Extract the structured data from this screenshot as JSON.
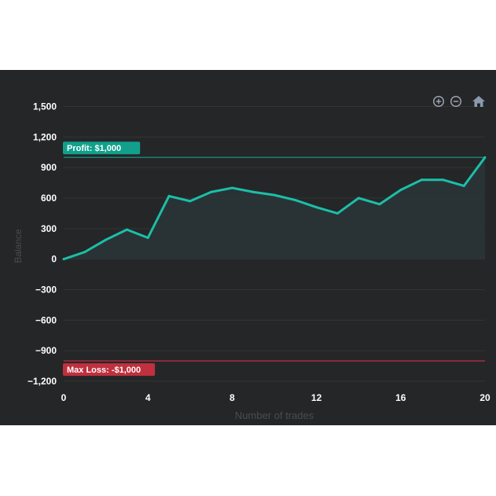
{
  "toolbar": {
    "zoom_in_icon": "zoom-in-icon",
    "zoom_out_icon": "zoom-out-icon",
    "home_icon": "home-icon"
  },
  "colors": {
    "background": "#252628",
    "line": "#1bbfa8",
    "area": "#2a3536",
    "grid": "#323436",
    "axis_text": "#ffffff",
    "axis_title": "#4a4c4f",
    "profit": "#12a08c",
    "loss": "#c0303e"
  },
  "annotations": {
    "profit_label": "Profit: $1,000",
    "loss_label": "Max Loss: -$1,000"
  },
  "chart_data": {
    "type": "area",
    "xlabel": "Number of trades",
    "ylabel": "Balance",
    "xlim": [
      0,
      20
    ],
    "ylim": [
      -1300,
      1550
    ],
    "x_ticks": [
      0,
      4,
      8,
      12,
      16,
      20
    ],
    "x_tick_labels": [
      "0",
      "4",
      "8",
      "12",
      "16",
      "20"
    ],
    "y_ticks": [
      1500,
      1200,
      900,
      600,
      300,
      0,
      -300,
      -600,
      -900,
      -1200
    ],
    "y_tick_labels": [
      "1,500",
      "1,200",
      "900",
      "600",
      "300",
      "0",
      "−300",
      "−600",
      "−900",
      "−1,200"
    ],
    "grid": true,
    "reference_lines": [
      {
        "label": "Profit: $1,000",
        "y": 1000
      },
      {
        "label": "Max Loss: -$1,000",
        "y": -1000
      }
    ],
    "series": [
      {
        "x": [
          0,
          1,
          2,
          3,
          4,
          5,
          6,
          7,
          8,
          9,
          10,
          11,
          12,
          13,
          14,
          15,
          16,
          17,
          18,
          19,
          20
        ],
        "values": [
          0,
          70,
          190,
          290,
          210,
          620,
          570,
          660,
          700,
          660,
          630,
          580,
          510,
          450,
          600,
          540,
          680,
          780,
          780,
          720,
          1000
        ]
      }
    ]
  }
}
